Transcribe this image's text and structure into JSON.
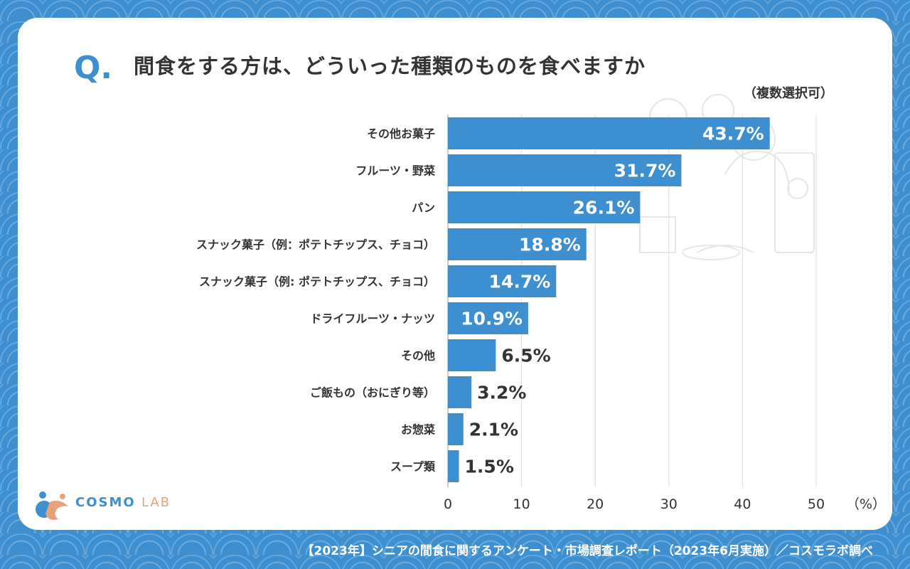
{
  "header": {
    "q_mark": "Q.",
    "title": "間食をする方は、どういった種類のものを食べますか",
    "note": "（複数選択可）"
  },
  "brand": {
    "logo_main": "COSMO",
    "logo_sub": "LAB",
    "logo_main_color": "#3d8fd0",
    "logo_sub_color": "#e8a27a"
  },
  "footer": {
    "source": "【2023年】シニアの間食に関するアンケート・市場調査レポート（2023年6月実施）／コスモラボ調べ"
  },
  "colors": {
    "bar": "#3d8fd0",
    "background": "#3d8fd0",
    "card": "#ffffff",
    "text": "#333333"
  },
  "chart_data": {
    "type": "bar",
    "orientation": "horizontal",
    "categories": [
      "その他お菓子",
      "フルーツ・野菜",
      "パン",
      "スナック菓子（例：ポテトチップス、チョコ）",
      "スナック菓子（例: ポテトチップス、チョコ）",
      "ドライフルーツ・ナッツ",
      "その他",
      "ご飯もの（おにぎり等）",
      "お惣菜",
      "スープ類"
    ],
    "values": [
      43.7,
      31.7,
      26.1,
      18.8,
      14.7,
      10.9,
      6.5,
      3.2,
      2.1,
      1.5
    ],
    "value_labels": [
      "43.7%",
      "31.7%",
      "26.1%",
      "18.8%",
      "14.7%",
      "10.9%",
      "6.5%",
      "3.2%",
      "2.1%",
      "1.5%"
    ],
    "xlim": [
      0,
      50
    ],
    "xticks": [
      "0",
      "10",
      "20",
      "30",
      "40",
      "50"
    ],
    "xunit": "（%）",
    "grid": "vertical"
  }
}
